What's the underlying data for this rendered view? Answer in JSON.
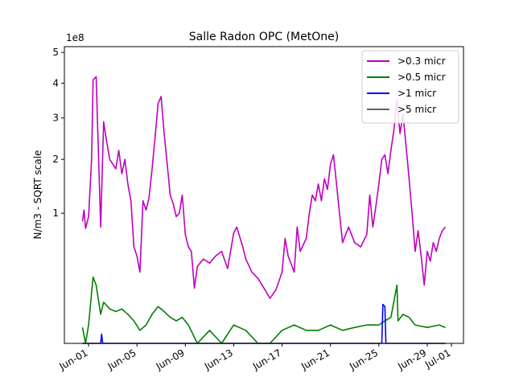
{
  "chart_data": {
    "type": "line",
    "title": "Salle Radon OPC (MetOne)",
    "xlabel": "",
    "ylabel": "N/m3 - SQRT scale",
    "y_scale": "sqrt",
    "y_offset_text": "1e8",
    "ylim": [
      0,
      5.2
    ],
    "xlim": [
      "2022-05-30",
      "2022-07-02"
    ],
    "grid": false,
    "legend_position": "upper right",
    "x_ticks": [
      {
        "date": "2022-06-01",
        "label": "Jun-01"
      },
      {
        "date": "2022-06-05",
        "label": "Jun-05"
      },
      {
        "date": "2022-06-09",
        "label": "Jun-09"
      },
      {
        "date": "2022-06-13",
        "label": "Jun-13"
      },
      {
        "date": "2022-06-17",
        "label": "Jun-17"
      },
      {
        "date": "2022-06-21",
        "label": "Jun-21"
      },
      {
        "date": "2022-06-25",
        "label": "Jun-25"
      },
      {
        "date": "2022-06-29",
        "label": "Jun-29"
      },
      {
        "date": "2022-07-01",
        "label": "Jul-01"
      }
    ],
    "y_ticks": [
      1,
      2,
      3,
      4,
      5
    ],
    "series": [
      {
        "name": ">0.3 micr",
        "color": "#bf00bf",
        "points": [
          [
            "2022-05-31T12:00",
            0.88
          ],
          [
            "2022-05-31T15:00",
            1.05
          ],
          [
            "2022-05-31T18:00",
            0.78
          ],
          [
            "2022-06-01T00:00",
            0.95
          ],
          [
            "2022-06-01T06:00",
            2.0
          ],
          [
            "2022-06-01T09:00",
            4.1
          ],
          [
            "2022-06-01T15:00",
            4.2
          ],
          [
            "2022-06-01T18:00",
            2.8
          ],
          [
            "2022-06-02T00:00",
            0.8
          ],
          [
            "2022-06-02T06:00",
            2.9
          ],
          [
            "2022-06-02T12:00",
            2.4
          ],
          [
            "2022-06-02T18:00",
            2.0
          ],
          [
            "2022-06-03T06:00",
            1.8
          ],
          [
            "2022-06-03T12:00",
            2.2
          ],
          [
            "2022-06-03T18:00",
            1.7
          ],
          [
            "2022-06-04T00:00",
            2.0
          ],
          [
            "2022-06-04T06:00",
            1.5
          ],
          [
            "2022-06-04T12:00",
            1.2
          ],
          [
            "2022-06-04T18:00",
            0.55
          ],
          [
            "2022-06-05T00:00",
            0.45
          ],
          [
            "2022-06-05T06:00",
            0.3
          ],
          [
            "2022-06-05T12:00",
            1.2
          ],
          [
            "2022-06-05T18:00",
            1.05
          ],
          [
            "2022-06-06T00:00",
            1.25
          ],
          [
            "2022-06-06T06:00",
            1.8
          ],
          [
            "2022-06-06T12:00",
            2.5
          ],
          [
            "2022-06-06T18:00",
            3.4
          ],
          [
            "2022-06-07T00:00",
            3.6
          ],
          [
            "2022-06-07T06:00",
            2.6
          ],
          [
            "2022-06-07T12:00",
            1.9
          ],
          [
            "2022-06-07T18:00",
            1.3
          ],
          [
            "2022-06-08T00:00",
            1.15
          ],
          [
            "2022-06-08T06:00",
            0.95
          ],
          [
            "2022-06-08T12:00",
            1.0
          ],
          [
            "2022-06-08T18:00",
            1.3
          ],
          [
            "2022-06-09T00:00",
            0.7
          ],
          [
            "2022-06-09T06:00",
            0.55
          ],
          [
            "2022-06-09T12:00",
            0.5
          ],
          [
            "2022-06-09T18:00",
            0.18
          ],
          [
            "2022-06-10T00:00",
            0.35
          ],
          [
            "2022-06-10T12:00",
            0.42
          ],
          [
            "2022-06-11T00:00",
            0.38
          ],
          [
            "2022-06-11T12:00",
            0.45
          ],
          [
            "2022-06-12T00:00",
            0.5
          ],
          [
            "2022-06-12T12:00",
            0.33
          ],
          [
            "2022-06-13T00:00",
            0.72
          ],
          [
            "2022-06-13T06:00",
            0.8
          ],
          [
            "2022-06-13T18:00",
            0.55
          ],
          [
            "2022-06-14T00:00",
            0.42
          ],
          [
            "2022-06-14T12:00",
            0.3
          ],
          [
            "2022-06-15T00:00",
            0.25
          ],
          [
            "2022-06-15T12:00",
            0.18
          ],
          [
            "2022-06-16T00:00",
            0.12
          ],
          [
            "2022-06-16T12:00",
            0.17
          ],
          [
            "2022-06-17T00:00",
            0.3
          ],
          [
            "2022-06-17T06:00",
            0.65
          ],
          [
            "2022-06-17T12:00",
            0.45
          ],
          [
            "2022-06-18T00:00",
            0.3
          ],
          [
            "2022-06-18T06:00",
            0.8
          ],
          [
            "2022-06-18T12:00",
            0.5
          ],
          [
            "2022-06-19T00:00",
            0.65
          ],
          [
            "2022-06-19T06:00",
            1.0
          ],
          [
            "2022-06-19T12:00",
            1.3
          ],
          [
            "2022-06-19T18:00",
            1.2
          ],
          [
            "2022-06-20T00:00",
            1.5
          ],
          [
            "2022-06-20T06:00",
            1.2
          ],
          [
            "2022-06-20T12:00",
            1.6
          ],
          [
            "2022-06-20T18:00",
            1.4
          ],
          [
            "2022-06-21T00:00",
            1.9
          ],
          [
            "2022-06-21T06:00",
            2.1
          ],
          [
            "2022-06-21T12:00",
            1.5
          ],
          [
            "2022-06-21T18:00",
            1.0
          ],
          [
            "2022-06-22T00:00",
            0.6
          ],
          [
            "2022-06-22T12:00",
            0.8
          ],
          [
            "2022-06-23T00:00",
            0.6
          ],
          [
            "2022-06-23T12:00",
            0.55
          ],
          [
            "2022-06-24T00:00",
            0.7
          ],
          [
            "2022-06-24T06:00",
            1.3
          ],
          [
            "2022-06-24T12:00",
            0.8
          ],
          [
            "2022-06-24T18:00",
            1.1
          ],
          [
            "2022-06-25T00:00",
            1.5
          ],
          [
            "2022-06-25T06:00",
            2.0
          ],
          [
            "2022-06-25T12:00",
            2.1
          ],
          [
            "2022-06-25T18:00",
            1.7
          ],
          [
            "2022-06-26T00:00",
            2.2
          ],
          [
            "2022-06-26T06:00",
            2.7
          ],
          [
            "2022-06-26T12:00",
            3.5
          ],
          [
            "2022-06-26T18:00",
            2.6
          ],
          [
            "2022-06-27T00:00",
            3.1
          ],
          [
            "2022-06-27T06:00",
            2.3
          ],
          [
            "2022-06-27T12:00",
            1.6
          ],
          [
            "2022-06-27T18:00",
            1.0
          ],
          [
            "2022-06-28T00:00",
            0.5
          ],
          [
            "2022-06-28T06:00",
            0.75
          ],
          [
            "2022-06-28T12:00",
            0.45
          ],
          [
            "2022-06-28T18:00",
            0.2
          ],
          [
            "2022-06-29T00:00",
            0.5
          ],
          [
            "2022-06-29T06:00",
            0.4
          ],
          [
            "2022-06-29T12:00",
            0.6
          ],
          [
            "2022-06-29T18:00",
            0.5
          ],
          [
            "2022-06-30T00:00",
            0.65
          ],
          [
            "2022-06-30T06:00",
            0.75
          ],
          [
            "2022-06-30T12:00",
            0.8
          ]
        ]
      },
      {
        "name": ">0.5 micr",
        "color": "#008000",
        "points": [
          [
            "2022-05-31T12:00",
            0.015
          ],
          [
            "2022-05-31T18:00",
            0.0
          ],
          [
            "2022-06-01T00:00",
            0.02
          ],
          [
            "2022-06-01T06:00",
            0.15
          ],
          [
            "2022-06-01T09:00",
            0.26
          ],
          [
            "2022-06-01T15:00",
            0.2
          ],
          [
            "2022-06-02T00:00",
            0.05
          ],
          [
            "2022-06-02T06:00",
            0.1
          ],
          [
            "2022-06-02T18:00",
            0.07
          ],
          [
            "2022-06-03T06:00",
            0.06
          ],
          [
            "2022-06-03T18:00",
            0.07
          ],
          [
            "2022-06-04T06:00",
            0.05
          ],
          [
            "2022-06-04T18:00",
            0.03
          ],
          [
            "2022-06-05T06:00",
            0.01
          ],
          [
            "2022-06-05T18:00",
            0.02
          ],
          [
            "2022-06-06T06:00",
            0.05
          ],
          [
            "2022-06-06T18:00",
            0.08
          ],
          [
            "2022-06-07T06:00",
            0.06
          ],
          [
            "2022-06-07T18:00",
            0.04
          ],
          [
            "2022-06-08T06:00",
            0.03
          ],
          [
            "2022-06-08T18:00",
            0.04
          ],
          [
            "2022-06-09T06:00",
            0.02
          ],
          [
            "2022-06-10T00:00",
            0.0
          ],
          [
            "2022-06-11T00:00",
            0.01
          ],
          [
            "2022-06-12T00:00",
            0.0
          ],
          [
            "2022-06-13T00:00",
            0.02
          ],
          [
            "2022-06-14T00:00",
            0.01
          ],
          [
            "2022-06-15T00:00",
            0.0
          ],
          [
            "2022-06-16T00:00",
            0.0
          ],
          [
            "2022-06-17T00:00",
            0.01
          ],
          [
            "2022-06-18T00:00",
            0.02
          ],
          [
            "2022-06-19T00:00",
            0.01
          ],
          [
            "2022-06-20T00:00",
            0.01
          ],
          [
            "2022-06-21T00:00",
            0.02
          ],
          [
            "2022-06-22T00:00",
            0.01
          ],
          [
            "2022-06-23T00:00",
            0.015
          ],
          [
            "2022-06-24T00:00",
            0.02
          ],
          [
            "2022-06-25T00:00",
            0.02
          ],
          [
            "2022-06-25T12:00",
            0.03
          ],
          [
            "2022-06-26T00:00",
            0.04
          ],
          [
            "2022-06-26T12:00",
            0.2
          ],
          [
            "2022-06-26T14:00",
            0.03
          ],
          [
            "2022-06-27T00:00",
            0.05
          ],
          [
            "2022-06-27T12:00",
            0.04
          ],
          [
            "2022-06-28T00:00",
            0.02
          ],
          [
            "2022-06-29T00:00",
            0.015
          ],
          [
            "2022-06-30T00:00",
            0.02
          ],
          [
            "2022-06-30T12:00",
            0.015
          ]
        ]
      },
      {
        "name": ">1 micr",
        "color": "#0000ff",
        "points": [
          [
            "2022-05-31T12:00",
            0.0
          ],
          [
            "2022-06-02T00:00",
            0.0
          ],
          [
            "2022-06-02T02:00",
            0.005
          ],
          [
            "2022-06-02T04:00",
            0.0
          ],
          [
            "2022-06-25T06:00",
            0.0
          ],
          [
            "2022-06-25T08:00",
            0.09
          ],
          [
            "2022-06-25T12:00",
            0.08
          ],
          [
            "2022-06-25T14:00",
            0.0
          ],
          [
            "2022-06-30T12:00",
            0.0
          ]
        ]
      },
      {
        "name": ">5 micr",
        "color": "#666666",
        "points": [
          [
            "2022-05-31T12:00",
            0.0
          ],
          [
            "2022-06-30T12:00",
            0.0
          ]
        ]
      }
    ]
  }
}
